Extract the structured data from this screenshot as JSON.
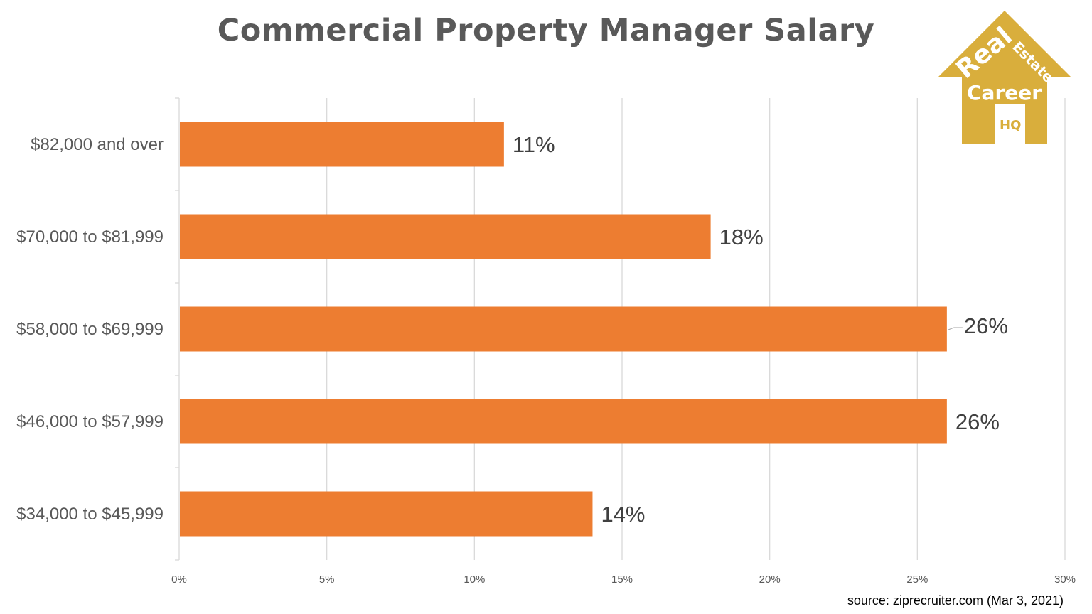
{
  "chart_data": {
    "type": "bar",
    "orientation": "horizontal",
    "title": "Commercial Property Manager Salary",
    "categories": [
      "$82,000 and over",
      "$70,000 to $81,999",
      "$58,000 to $69,999",
      "$46,000 to $57,999",
      "$34,000 to $45,999"
    ],
    "values": [
      11,
      18,
      26,
      26,
      14
    ],
    "data_labels": [
      "11%",
      "18%",
      "26%",
      "26%",
      "14%"
    ],
    "xlim": [
      0,
      30
    ],
    "xticks": [
      0,
      5,
      10,
      15,
      20,
      25,
      30
    ],
    "xtick_labels": [
      "0%",
      "5%",
      "10%",
      "15%",
      "20%",
      "25%",
      "30%"
    ],
    "xlabel": "",
    "ylabel": "",
    "grid": "vertical",
    "bar_color": "#ED7D31"
  },
  "source": "source: ziprecruiter.com (Mar 3, 2021)",
  "logo": {
    "text": [
      "Real",
      "Estate",
      "Career",
      "HQ"
    ],
    "color": "#D9AE3C"
  }
}
